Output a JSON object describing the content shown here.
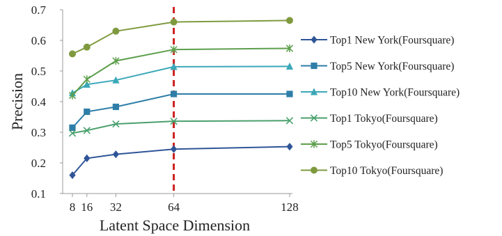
{
  "chart_data": {
    "type": "line",
    "title": "",
    "xlabel": "Latent Space Dimension",
    "ylabel": "Precision",
    "x": [
      8,
      16,
      32,
      64,
      128
    ],
    "xticks": [
      "8",
      "16",
      "32",
      "64",
      "128"
    ],
    "ylim": [
      0.1,
      0.7
    ],
    "yticks": [
      "0.1",
      "0.2",
      "0.3",
      "0.4",
      "0.5",
      "0.6",
      "0.7"
    ],
    "grid": false,
    "legend_position": "right",
    "reference_line": {
      "x": 64,
      "color": "#cc1f1f",
      "style": "dashed"
    },
    "series": [
      {
        "name": "Top1 New York(Foursquare)",
        "values": [
          0.16,
          0.215,
          0.228,
          0.245,
          0.253
        ],
        "color": "#2f5597",
        "marker": "diamond"
      },
      {
        "name": "Top5 New York(Foursquare)",
        "values": [
          0.315,
          0.367,
          0.383,
          0.425,
          0.425
        ],
        "color": "#2e7ea8",
        "marker": "square"
      },
      {
        "name": "Top10 New York(Foursquare)",
        "values": [
          0.428,
          0.456,
          0.47,
          0.514,
          0.515
        ],
        "color": "#3aa8b8",
        "marker": "triangle"
      },
      {
        "name": "Top1 Tokyo(Foursquare)",
        "values": [
          0.297,
          0.306,
          0.327,
          0.336,
          0.338
        ],
        "color": "#4aa06d",
        "marker": "x"
      },
      {
        "name": "Top5 Tokyo(Foursquare)",
        "values": [
          0.42,
          0.473,
          0.533,
          0.57,
          0.574
        ],
        "color": "#5c9e4c",
        "marker": "star"
      },
      {
        "name": "Top10 Tokyo(Foursquare)",
        "values": [
          0.556,
          0.578,
          0.63,
          0.66,
          0.665
        ],
        "color": "#7f9a3e",
        "marker": "circle"
      }
    ]
  }
}
